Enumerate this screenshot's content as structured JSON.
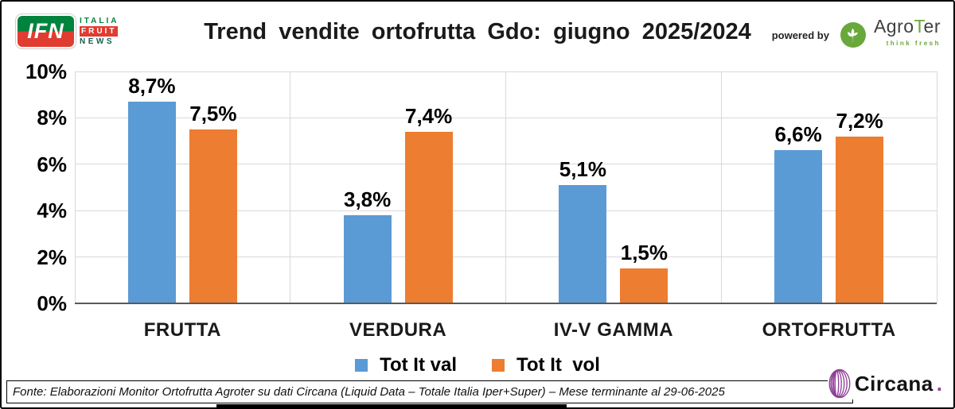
{
  "header": {
    "ifn": {
      "badge": "IFN",
      "line1": "ITALIA",
      "line2": "FRUIT",
      "line3": "NEWS"
    },
    "powered_by": "powered by",
    "agroter": {
      "part1": "Agro",
      "part2": "T",
      "part3": "er",
      "tagline": "think fresh"
    }
  },
  "chart_data": {
    "type": "bar",
    "title": "Trend vendite ortofrutta Gdo: giugno 2025/2024",
    "categories": [
      "FRUTTA",
      "VERDURA",
      "IV-V GAMMA",
      "ORTOFRUTTA"
    ],
    "series": [
      {
        "name": "Tot It val",
        "color": "#5B9BD5",
        "values": [
          8.7,
          3.8,
          5.1,
          6.6
        ],
        "labels": [
          "8,7%",
          "3,8%",
          "5,1%",
          "6,6%"
        ]
      },
      {
        "name": "Tot It  vol",
        "color": "#ED7D31",
        "values": [
          7.5,
          7.4,
          1.5,
          7.2
        ],
        "labels": [
          "7,5%",
          "7,4%",
          "1,5%",
          "7,2%"
        ]
      }
    ],
    "xlabel": "",
    "ylabel": "",
    "ylim": [
      0,
      10
    ],
    "yticks": [
      "0%",
      "2%",
      "4%",
      "6%",
      "8%",
      "10%"
    ],
    "grid": true,
    "legend_position": "bottom"
  },
  "footer": {
    "source": "Fonte: Elaborazioni Monitor Ortofrutta Agroter su dati Circana (Liquid Data – Totale Italia Iper+Super) – Mese terminante al 29-06-2025"
  },
  "circana": {
    "wordmark": "Circana",
    "dot": "."
  },
  "colors": {
    "series_val_blue": "#5B9BD5",
    "series_vol_orange": "#ED7D31",
    "gridline": "#D9D9D9",
    "axis": "#595959",
    "ifn_green": "#00843D",
    "ifn_red": "#E03C31",
    "ifn_news_teal": "#135E4E",
    "agroter_green": "#69A83B",
    "circana_purple": "#8F3F97"
  }
}
